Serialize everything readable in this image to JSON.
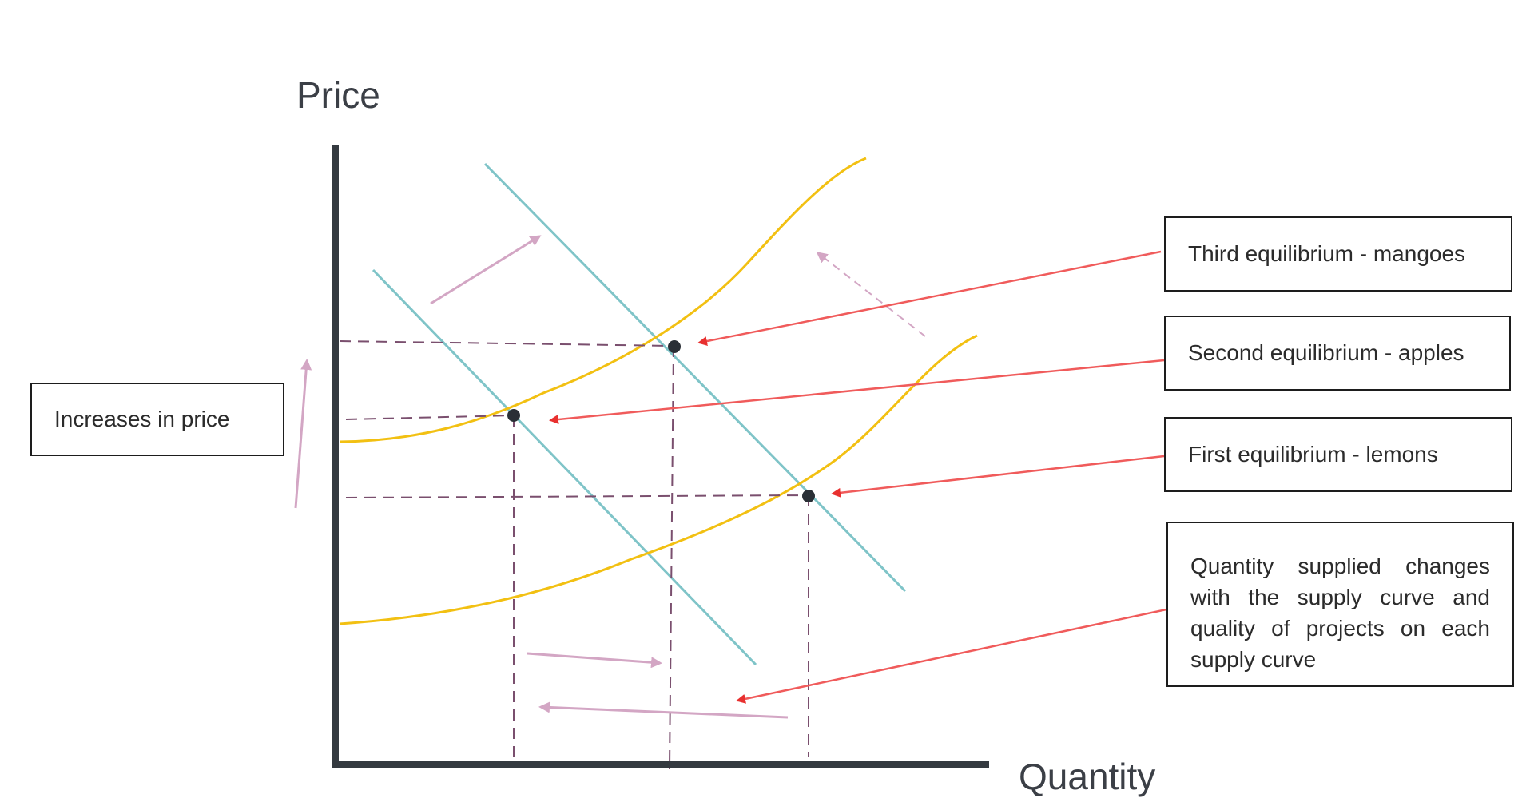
{
  "axes": {
    "y_label": "Price",
    "x_label": "Quantity"
  },
  "annotations": {
    "increases_in_price": "Increases in price",
    "third_equilibrium": "Third equilibrium - mangoes",
    "second_equilibrium": "Second equilibrium - apples",
    "first_equilibrium": "First equilibrium - lemons",
    "quantity_note": "Quantity supplied changes with the supply curve and quality of projects on each supply curve"
  },
  "colors": {
    "axis": "#343a40",
    "supply_curve": "#f2c012",
    "demand_curve": "#7fc4c8",
    "guide_line": "#7a4f6e",
    "callout_arrow": "#f05b5b",
    "shift_arrow": "#d3a6c4",
    "point": "#2a2f36"
  }
}
